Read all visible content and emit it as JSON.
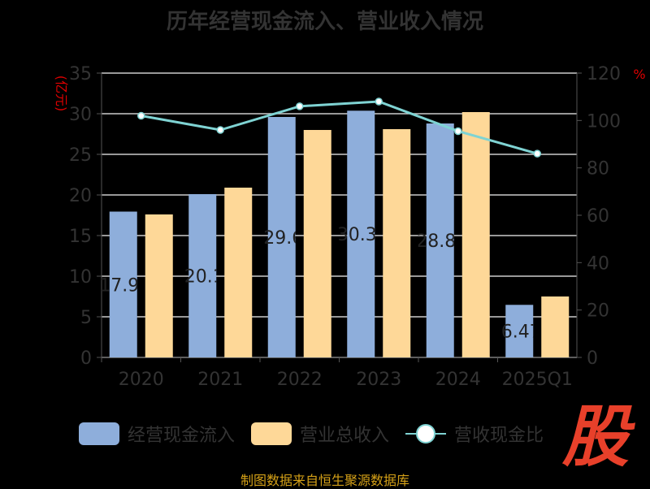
{
  "chart_data": {
    "type": "bar",
    "title": "历年经营现金流入、营业收入情况",
    "categories": [
      "2020",
      "2021",
      "2022",
      "2023",
      "2024",
      "2025Q1"
    ],
    "series": [
      {
        "name": "经营现金流入",
        "type": "bar",
        "axis": "left",
        "color": "#8eaedb",
        "values": [
          17.95,
          20.1,
          29.6,
          30.37,
          28.8,
          6.47
        ],
        "labels": [
          "17.95",
          "20.1",
          "29.6",
          "30.37",
          "28.80",
          "6.47"
        ]
      },
      {
        "name": "营业总收入",
        "type": "bar",
        "axis": "left",
        "color": "#fed898",
        "values": [
          17.6,
          20.9,
          28.0,
          28.1,
          30.2,
          7.5
        ]
      },
      {
        "name": "营收现金比",
        "type": "line",
        "axis": "right",
        "color": "#7fd3d3",
        "values": [
          102,
          96,
          106,
          108,
          95.5,
          86
        ]
      }
    ],
    "ylabel": "(亿元)",
    "y2label": "%",
    "ylim": [
      0,
      35
    ],
    "yticks": [
      "0",
      "5",
      "10",
      "15",
      "20",
      "25",
      "30",
      "35"
    ],
    "y2lim": [
      0,
      120
    ],
    "y2ticks": [
      "0",
      "20",
      "40",
      "60",
      "80",
      "100",
      "120"
    ],
    "grid": true,
    "legend": "bottom"
  },
  "source": "制图数据来自恒生聚源数据库",
  "logo": "股"
}
